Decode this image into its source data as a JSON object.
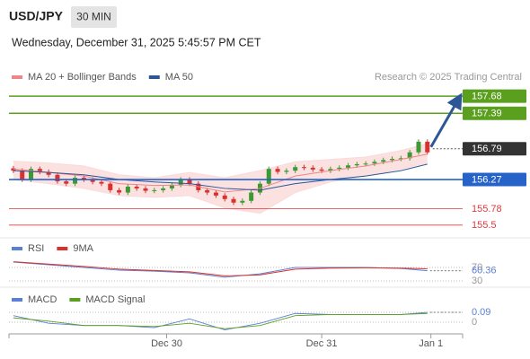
{
  "header": {
    "symbol": "USD/JPY",
    "interval": "30 MIN",
    "datetime": "Wednesday, December 31, 2025 5:45:57 PM CET"
  },
  "chart_data": [
    {
      "type": "candlestick",
      "annotation": "Research © 2025 Trading Central",
      "xlim": [
        -0.5,
        51
      ],
      "ylim": [
        155.33,
        157.94
      ],
      "up_color": "#3c9a32",
      "down_color": "#d9312b",
      "open": [
        156.46,
        156.42,
        156.27,
        156.45,
        156.4,
        156.35,
        156.24,
        156.2,
        156.3,
        156.27,
        156.23,
        156.2,
        156.09,
        156.05,
        156.15,
        156.12,
        156.08,
        156.09,
        156.12,
        156.18,
        156.27,
        156.2,
        156.09,
        156.05,
        156.0,
        155.94,
        155.88,
        155.91,
        156.05,
        156.2,
        156.45,
        156.4,
        156.42,
        156.48,
        156.47,
        156.44,
        156.42,
        156.45,
        156.47,
        156.51,
        156.53,
        156.54,
        156.57,
        156.6,
        156.62,
        156.63,
        156.73,
        156.91
      ],
      "high": [
        156.5,
        156.46,
        156.49,
        156.49,
        156.44,
        156.39,
        156.28,
        156.34,
        156.34,
        156.31,
        156.27,
        156.24,
        156.13,
        156.19,
        156.19,
        156.16,
        156.13,
        156.16,
        156.22,
        156.31,
        156.31,
        156.24,
        156.13,
        156.09,
        156.04,
        155.98,
        155.95,
        156.09,
        156.24,
        156.49,
        156.49,
        156.46,
        156.52,
        156.52,
        156.51,
        156.48,
        156.49,
        156.51,
        156.55,
        156.57,
        156.58,
        156.61,
        156.64,
        156.66,
        156.67,
        156.77,
        156.95,
        156.95
      ],
      "low": [
        156.38,
        156.23,
        156.23,
        156.36,
        156.31,
        156.2,
        156.16,
        156.16,
        156.23,
        156.19,
        156.16,
        156.05,
        156.01,
        156.01,
        156.08,
        156.04,
        156.04,
        156.05,
        156.08,
        156.14,
        156.16,
        156.05,
        156.01,
        155.96,
        155.9,
        155.84,
        155.84,
        155.87,
        156.01,
        156.16,
        156.36,
        156.36,
        156.38,
        156.43,
        156.4,
        156.38,
        156.38,
        156.41,
        156.43,
        156.47,
        156.49,
        156.5,
        156.53,
        156.56,
        156.58,
        156.59,
        156.69,
        156.69
      ],
      "close": [
        156.42,
        156.27,
        156.45,
        156.4,
        156.35,
        156.24,
        156.2,
        156.3,
        156.27,
        156.23,
        156.2,
        156.09,
        156.05,
        156.15,
        156.12,
        156.08,
        156.09,
        156.12,
        156.18,
        156.27,
        156.2,
        156.09,
        156.05,
        156.0,
        155.94,
        155.88,
        155.91,
        156.05,
        156.2,
        156.45,
        156.4,
        156.42,
        156.48,
        156.47,
        156.44,
        156.42,
        156.45,
        156.47,
        156.51,
        156.53,
        156.54,
        156.57,
        156.6,
        156.62,
        156.63,
        156.73,
        156.91,
        156.73
      ],
      "line_x": [
        0,
        4,
        8,
        12,
        16,
        20,
        24,
        28,
        32,
        36,
        40,
        44,
        47
      ],
      "bands": {
        "color": "#fbd9d9",
        "upper": [
          156.58,
          156.55,
          156.5,
          156.35,
          156.3,
          156.39,
          156.3,
          156.42,
          156.57,
          156.61,
          156.65,
          156.76,
          156.88
        ],
        "lower": [
          156.27,
          156.2,
          156.12,
          156.0,
          155.97,
          156.0,
          155.79,
          155.7,
          156.05,
          156.23,
          156.33,
          156.45,
          156.55
        ]
      },
      "series": [
        {
          "name": "MA 20 + Bollinger Bands",
          "color": "#f08585",
          "values": [
            156.45,
            156.39,
            156.33,
            156.2,
            156.17,
            156.18,
            156.06,
            156.12,
            156.33,
            156.42,
            156.5,
            156.61,
            156.7
          ]
        },
        {
          "name": "MA 50",
          "color": "#2b5797",
          "values": [
            156.42,
            156.39,
            156.35,
            156.27,
            156.23,
            156.2,
            156.12,
            156.09,
            156.2,
            156.27,
            156.33,
            156.42,
            156.53
          ]
        }
      ],
      "levels": [
        {
          "value": 157.68,
          "color": "#5aa01e",
          "box": true,
          "dotted": false
        },
        {
          "value": 157.39,
          "color": "#5aa01e",
          "box": true,
          "dotted": false
        },
        {
          "value": 156.79,
          "color": "#333333",
          "box": true,
          "dotted": true
        },
        {
          "value": 156.27,
          "color": "#2563c9",
          "box": true,
          "dotted": false
        },
        {
          "value": 155.78,
          "color": "#e0393e",
          "box": false,
          "dotted": false
        },
        {
          "value": 155.5,
          "color": "#e0393e",
          "box": false,
          "dotted": false
        }
      ]
    },
    {
      "type": "line",
      "xlim": [
        -0.5,
        51
      ],
      "ylim": [
        20,
        90
      ],
      "yticks": [
        30,
        70
      ],
      "line_x": [
        0,
        4,
        8,
        12,
        16,
        20,
        24,
        28,
        32,
        36,
        40,
        44,
        47
      ],
      "series": [
        {
          "name": "RSI",
          "color": "#5b7fd6",
          "values": [
            86,
            78,
            70,
            62,
            59,
            54,
            41,
            51,
            70,
            70,
            70,
            67,
            60.36
          ]
        },
        {
          "name": "9MA",
          "color": "#d9312b",
          "values": [
            87,
            80,
            73,
            65,
            61,
            57,
            45,
            48,
            65,
            68,
            69,
            68,
            66
          ]
        }
      ]
    },
    {
      "type": "line",
      "xlim": [
        -0.5,
        51
      ],
      "ylim": [
        -0.074,
        0.156
      ],
      "yticks": [
        0,
        0.09
      ],
      "line_x": [
        0,
        4,
        8,
        12,
        16,
        20,
        24,
        28,
        32,
        36,
        40,
        44,
        47
      ],
      "xticks": [
        {
          "value": 17.4,
          "label": "Dec 30"
        },
        {
          "value": 35,
          "label": "Dec 31"
        },
        {
          "value": 47.4,
          "label": "Jan 1"
        }
      ],
      "series": [
        {
          "name": "MACD",
          "color": "#5b7fd6",
          "values": [
            0.06,
            -0.01,
            -0.03,
            -0.03,
            -0.05,
            0.03,
            -0.07,
            -0.01,
            0.08,
            0.07,
            0.07,
            0.07,
            0.09
          ]
        },
        {
          "name": "MACD Signal",
          "color": "#5aa01e",
          "values": [
            0.04,
            0.01,
            -0.03,
            -0.03,
            -0.04,
            -0.01,
            -0.06,
            -0.03,
            0.06,
            0.07,
            0.07,
            0.07,
            0.08
          ]
        }
      ]
    }
  ]
}
